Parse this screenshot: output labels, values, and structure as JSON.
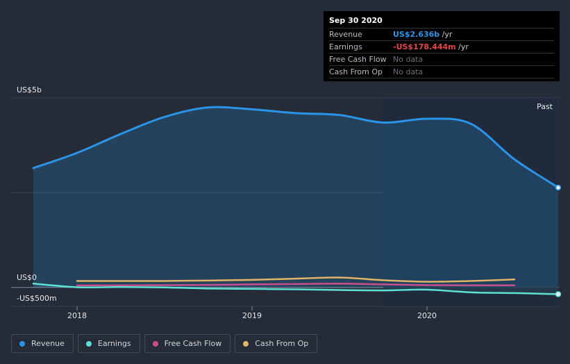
{
  "tooltip": {
    "date": "Sep 30 2020",
    "rows": [
      {
        "label": "Revenue",
        "value": "US$2.636b",
        "unit": " /yr"
      },
      {
        "label": "Earnings",
        "value": "-US$178.444m",
        "unit": " /yr"
      },
      {
        "label": "Free Cash Flow",
        "value": "No data"
      },
      {
        "label": "Cash From Op",
        "value": "No data"
      }
    ]
  },
  "colors": {
    "revenue": "#2b94e6",
    "earnings": "#5ee0d4",
    "free_cash_flow": "#c8508a",
    "cash_from_op": "#e0b469",
    "negative": "#e84545"
  },
  "chart_data": {
    "type": "area",
    "y_unit": "US$ millions",
    "ylim": [
      -500,
      5000
    ],
    "y_ticks": [
      {
        "value": 5000,
        "label": "US$5b"
      },
      {
        "value": 0,
        "label": "US$0"
      },
      {
        "value": -500,
        "label": "-US$500m"
      }
    ],
    "x_ticks": [
      {
        "value": 2018.0,
        "label": "2018"
      },
      {
        "value": 2019.0,
        "label": "2019"
      },
      {
        "value": 2020.0,
        "label": "2020"
      }
    ],
    "xlim": [
      2017.75,
      2020.75
    ],
    "past_label": "Past",
    "past_region_start": 2019.75,
    "series": [
      {
        "name": "Revenue",
        "key": "revenue",
        "x": [
          2017.75,
          2018.0,
          2018.25,
          2018.5,
          2018.75,
          2019.0,
          2019.25,
          2019.5,
          2019.75,
          2020.0,
          2020.25,
          2020.5,
          2020.75
        ],
        "values": [
          3150,
          3550,
          4050,
          4500,
          4750,
          4700,
          4600,
          4550,
          4350,
          4450,
          4320,
          3380,
          2636
        ]
      },
      {
        "name": "Earnings",
        "key": "earnings",
        "x": [
          2017.75,
          2018.0,
          2018.25,
          2018.5,
          2018.75,
          2019.0,
          2019.25,
          2019.5,
          2019.75,
          2020.0,
          2020.25,
          2020.5,
          2020.75
        ],
        "values": [
          100,
          5,
          10,
          0,
          -30,
          -40,
          -50,
          -70,
          -80,
          -60,
          -130,
          -150,
          -178.444
        ]
      },
      {
        "name": "Free Cash Flow",
        "key": "free_cash_flow",
        "x": [
          2018.0,
          2018.25,
          2018.5,
          2018.75,
          2019.0,
          2019.25,
          2019.5,
          2019.75,
          2020.0,
          2020.25,
          2020.5
        ],
        "values": [
          50,
          55,
          60,
          65,
          80,
          90,
          100,
          80,
          60,
          55,
          55
        ]
      },
      {
        "name": "Cash From Op",
        "key": "cash_from_op",
        "x": [
          2018.0,
          2018.25,
          2018.5,
          2018.75,
          2019.0,
          2019.25,
          2019.5,
          2019.75,
          2020.0,
          2020.25,
          2020.5
        ],
        "values": [
          170,
          170,
          170,
          180,
          200,
          230,
          260,
          190,
          150,
          170,
          210
        ]
      }
    ],
    "legend": [
      "Revenue",
      "Earnings",
      "Free Cash Flow",
      "Cash From Op"
    ]
  }
}
